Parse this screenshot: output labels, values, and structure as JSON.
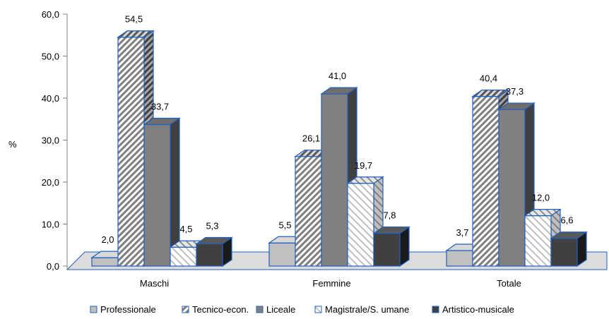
{
  "chart_data": {
    "type": "bar",
    "title": "",
    "xlabel": "",
    "ylabel": "%",
    "ylim": [
      0,
      60
    ],
    "y_ticks": [
      "0,0",
      "10,0",
      "20,0",
      "30,0",
      "40,0",
      "50,0",
      "60,0"
    ],
    "grid": false,
    "three_d": true,
    "legend_position": "bottom",
    "categories": [
      "Maschi",
      "Femmine",
      "Totale"
    ],
    "series": [
      {
        "name": "Professionale",
        "values": [
          2.0,
          5.5,
          3.7
        ],
        "labels": [
          "2,0",
          "5,5",
          "3,7"
        ],
        "pattern": "solid-light",
        "color": "#c0c0c0"
      },
      {
        "name": "Tecnico-econ.",
        "values": [
          54.5,
          26.1,
          40.4
        ],
        "labels": [
          "54,5",
          "26,1",
          "40,4"
        ],
        "pattern": "diagonal-hatch-dark",
        "color": "#7f7f7f"
      },
      {
        "name": "Liceale",
        "values": [
          33.7,
          41.0,
          37.3
        ],
        "labels": [
          "33,7",
          "41,0",
          "37,3"
        ],
        "pattern": "solid-medium",
        "color": "#808080"
      },
      {
        "name": "Magistrale/S. umane",
        "values": [
          4.5,
          19.7,
          12.0
        ],
        "labels": [
          "4,5",
          "19,7",
          "12,0"
        ],
        "pattern": "diagonal-hatch-light",
        "color": "#bfbfbf"
      },
      {
        "name": "Artistico-musicale",
        "values": [
          5.3,
          7.8,
          6.6
        ],
        "labels": [
          "5,3",
          "7,8",
          "6,6"
        ],
        "pattern": "solid-dark",
        "color": "#404040"
      }
    ],
    "edge_color": "#1f5fbf"
  }
}
